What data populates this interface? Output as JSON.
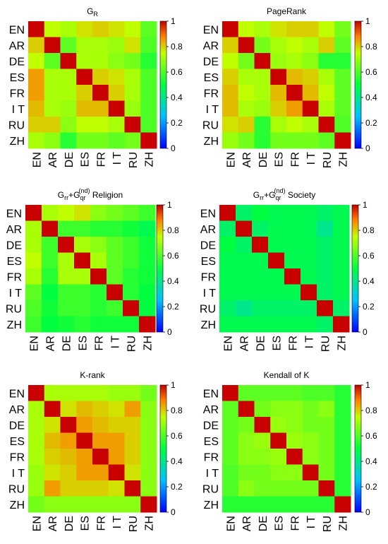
{
  "languages": [
    "EN",
    "AR",
    "DE",
    "ES",
    "FR",
    "I T",
    "RU",
    "ZH"
  ],
  "colorbar": {
    "ticks": [
      "0",
      "0.2",
      "0.4",
      "0.6",
      "0.8",
      "1"
    ]
  },
  "chart_data": [
    {
      "type": "heatmap",
      "title_main": "G",
      "title_sub": "R",
      "title_suffix": "",
      "vmin": 0,
      "vmax": 1,
      "rows": [
        "EN",
        "AR",
        "DE",
        "ES",
        "FR",
        "I T",
        "RU",
        "ZH"
      ],
      "cols": [
        "EN",
        "AR",
        "DE",
        "ES",
        "FR",
        "I T",
        "RU",
        "ZH"
      ],
      "values": [
        [
          1.0,
          0.75,
          0.72,
          0.78,
          0.8,
          0.78,
          0.75,
          0.62
        ],
        [
          0.8,
          1.0,
          0.62,
          0.72,
          0.72,
          0.7,
          0.78,
          0.6
        ],
        [
          0.75,
          0.62,
          1.0,
          0.72,
          0.72,
          0.68,
          0.65,
          0.55
        ],
        [
          0.85,
          0.72,
          0.72,
          1.0,
          0.8,
          0.78,
          0.72,
          0.6
        ],
        [
          0.85,
          0.72,
          0.72,
          0.8,
          1.0,
          0.8,
          0.72,
          0.6
        ],
        [
          0.82,
          0.72,
          0.7,
          0.82,
          0.82,
          1.0,
          0.7,
          0.6
        ],
        [
          0.8,
          0.8,
          0.68,
          0.75,
          0.75,
          0.72,
          1.0,
          0.6
        ],
        [
          0.72,
          0.68,
          0.55,
          0.65,
          0.65,
          0.62,
          0.65,
          1.0
        ]
      ]
    },
    {
      "type": "heatmap",
      "title_main": "PageRank",
      "title_sub": "",
      "title_suffix": "",
      "vmin": 0,
      "vmax": 1,
      "rows": [
        "EN",
        "AR",
        "DE",
        "ES",
        "FR",
        "I T",
        "RU",
        "ZH"
      ],
      "cols": [
        "EN",
        "AR",
        "DE",
        "ES",
        "FR",
        "I T",
        "RU",
        "ZH"
      ],
      "values": [
        [
          1.0,
          0.75,
          0.72,
          0.78,
          0.8,
          0.8,
          0.75,
          0.65
        ],
        [
          0.8,
          1.0,
          0.65,
          0.72,
          0.75,
          0.72,
          0.8,
          0.62
        ],
        [
          0.75,
          0.65,
          1.0,
          0.7,
          0.72,
          0.68,
          0.55,
          0.55
        ],
        [
          0.8,
          0.72,
          0.72,
          1.0,
          0.82,
          0.8,
          0.72,
          0.62
        ],
        [
          0.82,
          0.75,
          0.72,
          0.82,
          1.0,
          0.82,
          0.75,
          0.62
        ],
        [
          0.82,
          0.72,
          0.7,
          0.8,
          0.85,
          1.0,
          0.72,
          0.62
        ],
        [
          0.78,
          0.8,
          0.55,
          0.72,
          0.75,
          0.72,
          1.0,
          0.6
        ],
        [
          0.7,
          0.65,
          0.55,
          0.65,
          0.65,
          0.65,
          0.62,
          1.0
        ]
      ]
    },
    {
      "type": "heatmap",
      "title_main": "G",
      "title_sub": "rr",
      "title_plus": "+G",
      "title_sub2": "qr",
      "title_sup2": "(nd)",
      "title_suffix": "Religion",
      "vmin": 0,
      "vmax": 1,
      "rows": [
        "EN",
        "AR",
        "DE",
        "ES",
        "FR",
        "I T",
        "RU",
        "ZH"
      ],
      "cols": [
        "EN",
        "AR",
        "DE",
        "ES",
        "FR",
        "I T",
        "RU",
        "ZH"
      ],
      "values": [
        [
          1.0,
          0.72,
          0.75,
          0.78,
          0.68,
          0.65,
          0.62,
          0.58
        ],
        [
          0.72,
          1.0,
          0.58,
          0.58,
          0.55,
          0.55,
          0.52,
          0.48
        ],
        [
          0.72,
          0.58,
          1.0,
          0.72,
          0.68,
          0.62,
          0.58,
          0.52
        ],
        [
          0.75,
          0.58,
          0.72,
          1.0,
          0.72,
          0.62,
          0.58,
          0.52
        ],
        [
          0.72,
          0.55,
          0.72,
          0.72,
          1.0,
          0.62,
          0.55,
          0.52
        ],
        [
          0.62,
          0.5,
          0.58,
          0.58,
          0.55,
          1.0,
          0.55,
          0.5
        ],
        [
          0.6,
          0.52,
          0.58,
          0.58,
          0.55,
          0.58,
          1.0,
          0.5
        ],
        [
          0.58,
          0.5,
          0.52,
          0.55,
          0.52,
          0.52,
          0.52,
          1.0
        ]
      ]
    },
    {
      "type": "heatmap",
      "title_main": "G",
      "title_sub": "rr",
      "title_plus": "+G",
      "title_sub2": "qr",
      "title_sup2": "(nd)",
      "title_suffix": "Society",
      "vmin": 0,
      "vmax": 1,
      "rows": [
        "EN",
        "AR",
        "DE",
        "ES",
        "FR",
        "I T",
        "RU",
        "ZH"
      ],
      "cols": [
        "EN",
        "AR",
        "DE",
        "ES",
        "FR",
        "I T",
        "RU",
        "ZH"
      ],
      "values": [
        [
          1.0,
          0.45,
          0.5,
          0.48,
          0.48,
          0.48,
          0.45,
          0.48
        ],
        [
          0.45,
          1.0,
          0.45,
          0.48,
          0.48,
          0.48,
          0.4,
          0.48
        ],
        [
          0.5,
          0.45,
          1.0,
          0.48,
          0.48,
          0.48,
          0.45,
          0.48
        ],
        [
          0.48,
          0.48,
          0.48,
          1.0,
          0.48,
          0.48,
          0.45,
          0.48
        ],
        [
          0.48,
          0.48,
          0.48,
          0.48,
          1.0,
          0.48,
          0.45,
          0.48
        ],
        [
          0.48,
          0.48,
          0.48,
          0.48,
          0.48,
          1.0,
          0.45,
          0.48
        ],
        [
          0.45,
          0.4,
          0.45,
          0.45,
          0.45,
          0.45,
          1.0,
          0.45
        ],
        [
          0.48,
          0.48,
          0.48,
          0.48,
          0.48,
          0.48,
          0.45,
          1.0
        ]
      ]
    },
    {
      "type": "heatmap",
      "title_main": "K-rank",
      "title_sub": "",
      "title_suffix": "",
      "vmin": 0,
      "vmax": 1,
      "rows": [
        "EN",
        "AR",
        "DE",
        "ES",
        "FR",
        "I T",
        "RU",
        "ZH"
      ],
      "cols": [
        "EN",
        "AR",
        "DE",
        "ES",
        "FR",
        "I T",
        "RU",
        "ZH"
      ],
      "values": [
        [
          1.0,
          0.72,
          0.72,
          0.72,
          0.72,
          0.7,
          0.7,
          0.65
        ],
        [
          0.72,
          1.0,
          0.78,
          0.82,
          0.8,
          0.78,
          0.85,
          0.68
        ],
        [
          0.72,
          0.78,
          1.0,
          0.85,
          0.82,
          0.8,
          0.8,
          0.68
        ],
        [
          0.72,
          0.82,
          0.85,
          1.0,
          0.85,
          0.85,
          0.8,
          0.68
        ],
        [
          0.72,
          0.8,
          0.82,
          0.85,
          1.0,
          0.85,
          0.8,
          0.68
        ],
        [
          0.7,
          0.78,
          0.8,
          0.85,
          0.85,
          1.0,
          0.78,
          0.68
        ],
        [
          0.7,
          0.85,
          0.8,
          0.8,
          0.8,
          0.78,
          1.0,
          0.68
        ],
        [
          0.65,
          0.68,
          0.68,
          0.68,
          0.68,
          0.68,
          0.68,
          1.0
        ]
      ]
    },
    {
      "type": "heatmap",
      "title_main": "Kendall of K",
      "title_sub": "",
      "title_suffix": "",
      "vmin": 0,
      "vmax": 1,
      "rows": [
        "EN",
        "AR",
        "DE",
        "ES",
        "FR",
        "I T",
        "RU",
        "ZH"
      ],
      "cols": [
        "EN",
        "AR",
        "DE",
        "ES",
        "FR",
        "I T",
        "RU",
        "ZH"
      ],
      "values": [
        [
          1.0,
          0.62,
          0.62,
          0.62,
          0.62,
          0.6,
          0.6,
          0.55
        ],
        [
          0.62,
          1.0,
          0.65,
          0.68,
          0.68,
          0.65,
          0.68,
          0.55
        ],
        [
          0.62,
          0.65,
          1.0,
          0.7,
          0.68,
          0.65,
          0.65,
          0.55
        ],
        [
          0.62,
          0.68,
          0.7,
          1.0,
          0.7,
          0.68,
          0.65,
          0.55
        ],
        [
          0.62,
          0.68,
          0.68,
          0.7,
          1.0,
          0.68,
          0.65,
          0.55
        ],
        [
          0.6,
          0.65,
          0.65,
          0.68,
          0.68,
          1.0,
          0.65,
          0.55
        ],
        [
          0.6,
          0.68,
          0.65,
          0.65,
          0.65,
          0.65,
          1.0,
          0.55
        ],
        [
          0.55,
          0.55,
          0.55,
          0.55,
          0.55,
          0.55,
          0.55,
          1.0
        ]
      ]
    }
  ]
}
